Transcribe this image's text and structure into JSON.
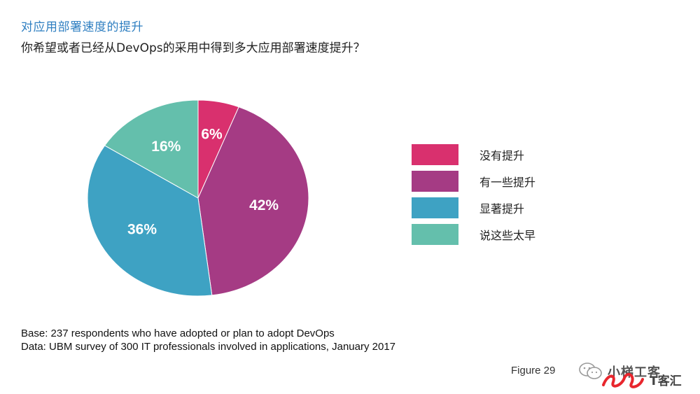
{
  "page": {
    "title": "对应用部署速度的提升",
    "subtitle": "你希望或者已经从DevOps的采用中得到多大应用部署速度提升？"
  },
  "chart_data": {
    "type": "pie",
    "title": "",
    "slices": [
      {
        "label": "没有提升",
        "value": 6,
        "display": "6%",
        "color": "#d9306e"
      },
      {
        "label": "有一些提升",
        "value": 42,
        "display": "42%",
        "color": "#a53b84"
      },
      {
        "label": "显著提升",
        "value": 36,
        "display": "36%",
        "color": "#3ea2c3"
      },
      {
        "label": "说这些太早",
        "value": 16,
        "display": "16%",
        "color": "#64bfac"
      }
    ],
    "start": "12 o'clock",
    "direction": "clockwise",
    "legend_position": "right"
  },
  "notes": {
    "base": "Base: 237 respondents who have adopted or plan to adopt DevOps",
    "data": "Data: UBM survey of 300 IT professionals involved in applications, January 2017"
  },
  "figure_label": "Figure 29",
  "watermark": {
    "text": "小梯工客",
    "logo_text": "T客汇",
    "icon": "wechat-icon",
    "logo_color": "#e8262d"
  }
}
